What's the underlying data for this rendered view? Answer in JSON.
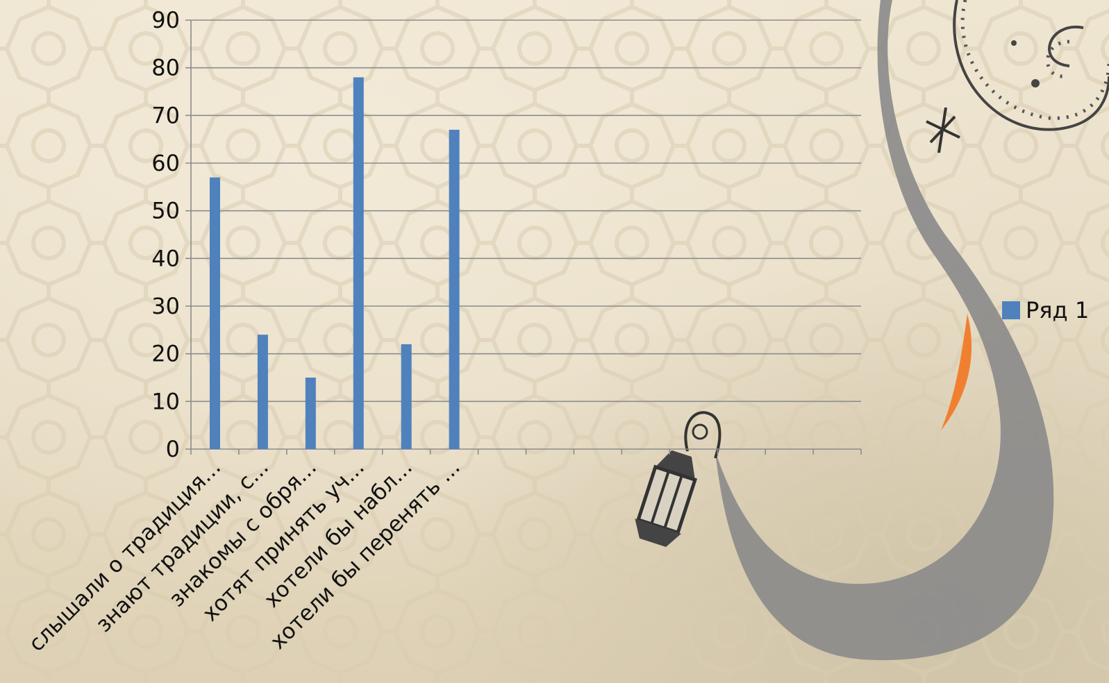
{
  "colors": {
    "bar": "#4f81bd",
    "gridline": "#8c8c8c",
    "axis": "#8c8c8c",
    "text": "#111111",
    "moon": "#8a8a8a",
    "flame": "#f08030",
    "background": "#ebe2cc"
  },
  "icons": [
    "crescent-moon-decoration",
    "lantern-decoration",
    "star-decoration",
    "swirl-decoration"
  ],
  "chart_data": {
    "type": "bar",
    "categories": [
      "слышали о традиция...",
      "знают традиции, с...",
      "знакомы с обря...",
      "хотят принять уч...",
      "хотели бы набл...",
      "хотели бы перенять ...",
      "",
      "",
      "",
      "",
      "",
      "",
      "",
      ""
    ],
    "series": [
      {
        "name": "Ряд 1",
        "values": [
          57,
          24,
          15,
          78,
          22,
          67,
          null,
          null,
          null,
          null,
          null,
          null,
          null,
          null
        ]
      }
    ],
    "yticks": [
      "0",
      "10",
      "20",
      "30",
      "40",
      "50",
      "60",
      "70",
      "80",
      "90"
    ],
    "ylim": [
      0,
      90
    ],
    "grid": true,
    "legend_position": "right"
  }
}
